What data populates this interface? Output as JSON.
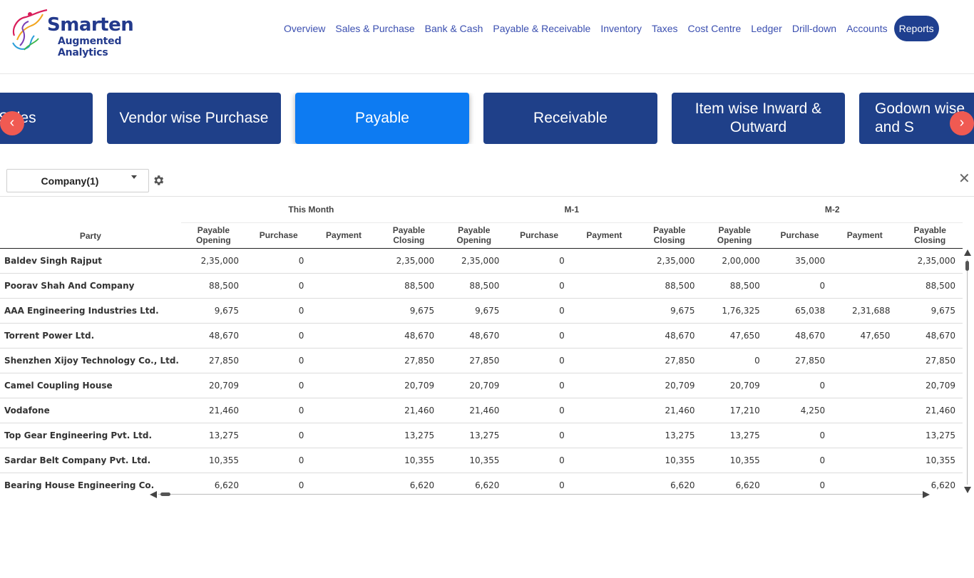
{
  "brand": {
    "name": "Smarten",
    "tagline": "Augmented Analytics",
    "logo_icon": "dancer-swirl-logo"
  },
  "nav": {
    "items": [
      {
        "label": "Overview"
      },
      {
        "label": "Sales & Purchase"
      },
      {
        "label": "Bank & Cash"
      },
      {
        "label": "Payable & Receivable"
      },
      {
        "label": "Inventory"
      },
      {
        "label": "Taxes"
      },
      {
        "label": "Cost Centre"
      },
      {
        "label": "Ledger"
      },
      {
        "label": "Drill-down"
      },
      {
        "label": "Accounts"
      },
      {
        "label": "Reports",
        "active": true
      }
    ]
  },
  "tiles": {
    "items": [
      {
        "label": "ise Sales"
      },
      {
        "label": "Vendor wise Purchase"
      },
      {
        "label": "Payable",
        "active": true
      },
      {
        "label": "Receivable"
      },
      {
        "label": "Item wise Inward & Outward"
      },
      {
        "label": "Godown wise and S"
      }
    ],
    "prev_icon": "chevron-left-icon",
    "next_icon": "chevron-right-icon",
    "prev_glyph": "‹",
    "next_glyph": "›"
  },
  "filters": {
    "company_label": "Company(1)",
    "settings_icon": "gear-icon",
    "close_glyph": "✕"
  },
  "table": {
    "party_header": "Party",
    "groups": [
      "This Month",
      "M-1",
      "M-2"
    ],
    "subcolumns": [
      "Payable Opening",
      "Purchase",
      "Payment",
      "Payable Closing"
    ],
    "rows": [
      {
        "party": "Baldev Singh Rajput",
        "values": [
          "2,35,000",
          "0",
          "",
          "2,35,000",
          "2,35,000",
          "0",
          "",
          "2,35,000",
          "2,00,000",
          "35,000",
          "",
          "2,35,000"
        ]
      },
      {
        "party": "Poorav Shah And Company",
        "values": [
          "88,500",
          "0",
          "",
          "88,500",
          "88,500",
          "0",
          "",
          "88,500",
          "88,500",
          "0",
          "",
          "88,500"
        ]
      },
      {
        "party": "AAA Engineering Industries Ltd.",
        "values": [
          "9,675",
          "0",
          "",
          "9,675",
          "9,675",
          "0",
          "",
          "9,675",
          "1,76,325",
          "65,038",
          "2,31,688",
          "9,675"
        ]
      },
      {
        "party": "Torrent Power Ltd.",
        "values": [
          "48,670",
          "0",
          "",
          "48,670",
          "48,670",
          "0",
          "",
          "48,670",
          "47,650",
          "48,670",
          "47,650",
          "48,670"
        ]
      },
      {
        "party": "Shenzhen Xijoy Technology Co., Ltd.",
        "values": [
          "27,850",
          "0",
          "",
          "27,850",
          "27,850",
          "0",
          "",
          "27,850",
          "0",
          "27,850",
          "",
          "27,850"
        ]
      },
      {
        "party": "Camel Coupling House",
        "values": [
          "20,709",
          "0",
          "",
          "20,709",
          "20,709",
          "0",
          "",
          "20,709",
          "20,709",
          "0",
          "",
          "20,709"
        ]
      },
      {
        "party": "Vodafone",
        "values": [
          "21,460",
          "0",
          "",
          "21,460",
          "21,460",
          "0",
          "",
          "21,460",
          "17,210",
          "4,250",
          "",
          "21,460"
        ]
      },
      {
        "party": "Top Gear Engineering Pvt. Ltd.",
        "values": [
          "13,275",
          "0",
          "",
          "13,275",
          "13,275",
          "0",
          "",
          "13,275",
          "13,275",
          "0",
          "",
          "13,275"
        ]
      },
      {
        "party": "Sardar Belt Company Pvt. Ltd.",
        "values": [
          "10,355",
          "0",
          "",
          "10,355",
          "10,355",
          "0",
          "",
          "10,355",
          "10,355",
          "0",
          "",
          "10,355"
        ]
      },
      {
        "party": "Bearing House Engineering Co.",
        "values": [
          "6,620",
          "0",
          "",
          "6,620",
          "6,620",
          "0",
          "",
          "6,620",
          "6,620",
          "0",
          "",
          "6,620"
        ]
      }
    ]
  },
  "colors": {
    "nav_text": "#3b4fb0",
    "tile_bg": "#1f4089",
    "tile_active_bg": "#0d7bf2",
    "arrow_bg": "#f05a52",
    "brand": "#233a8c"
  }
}
